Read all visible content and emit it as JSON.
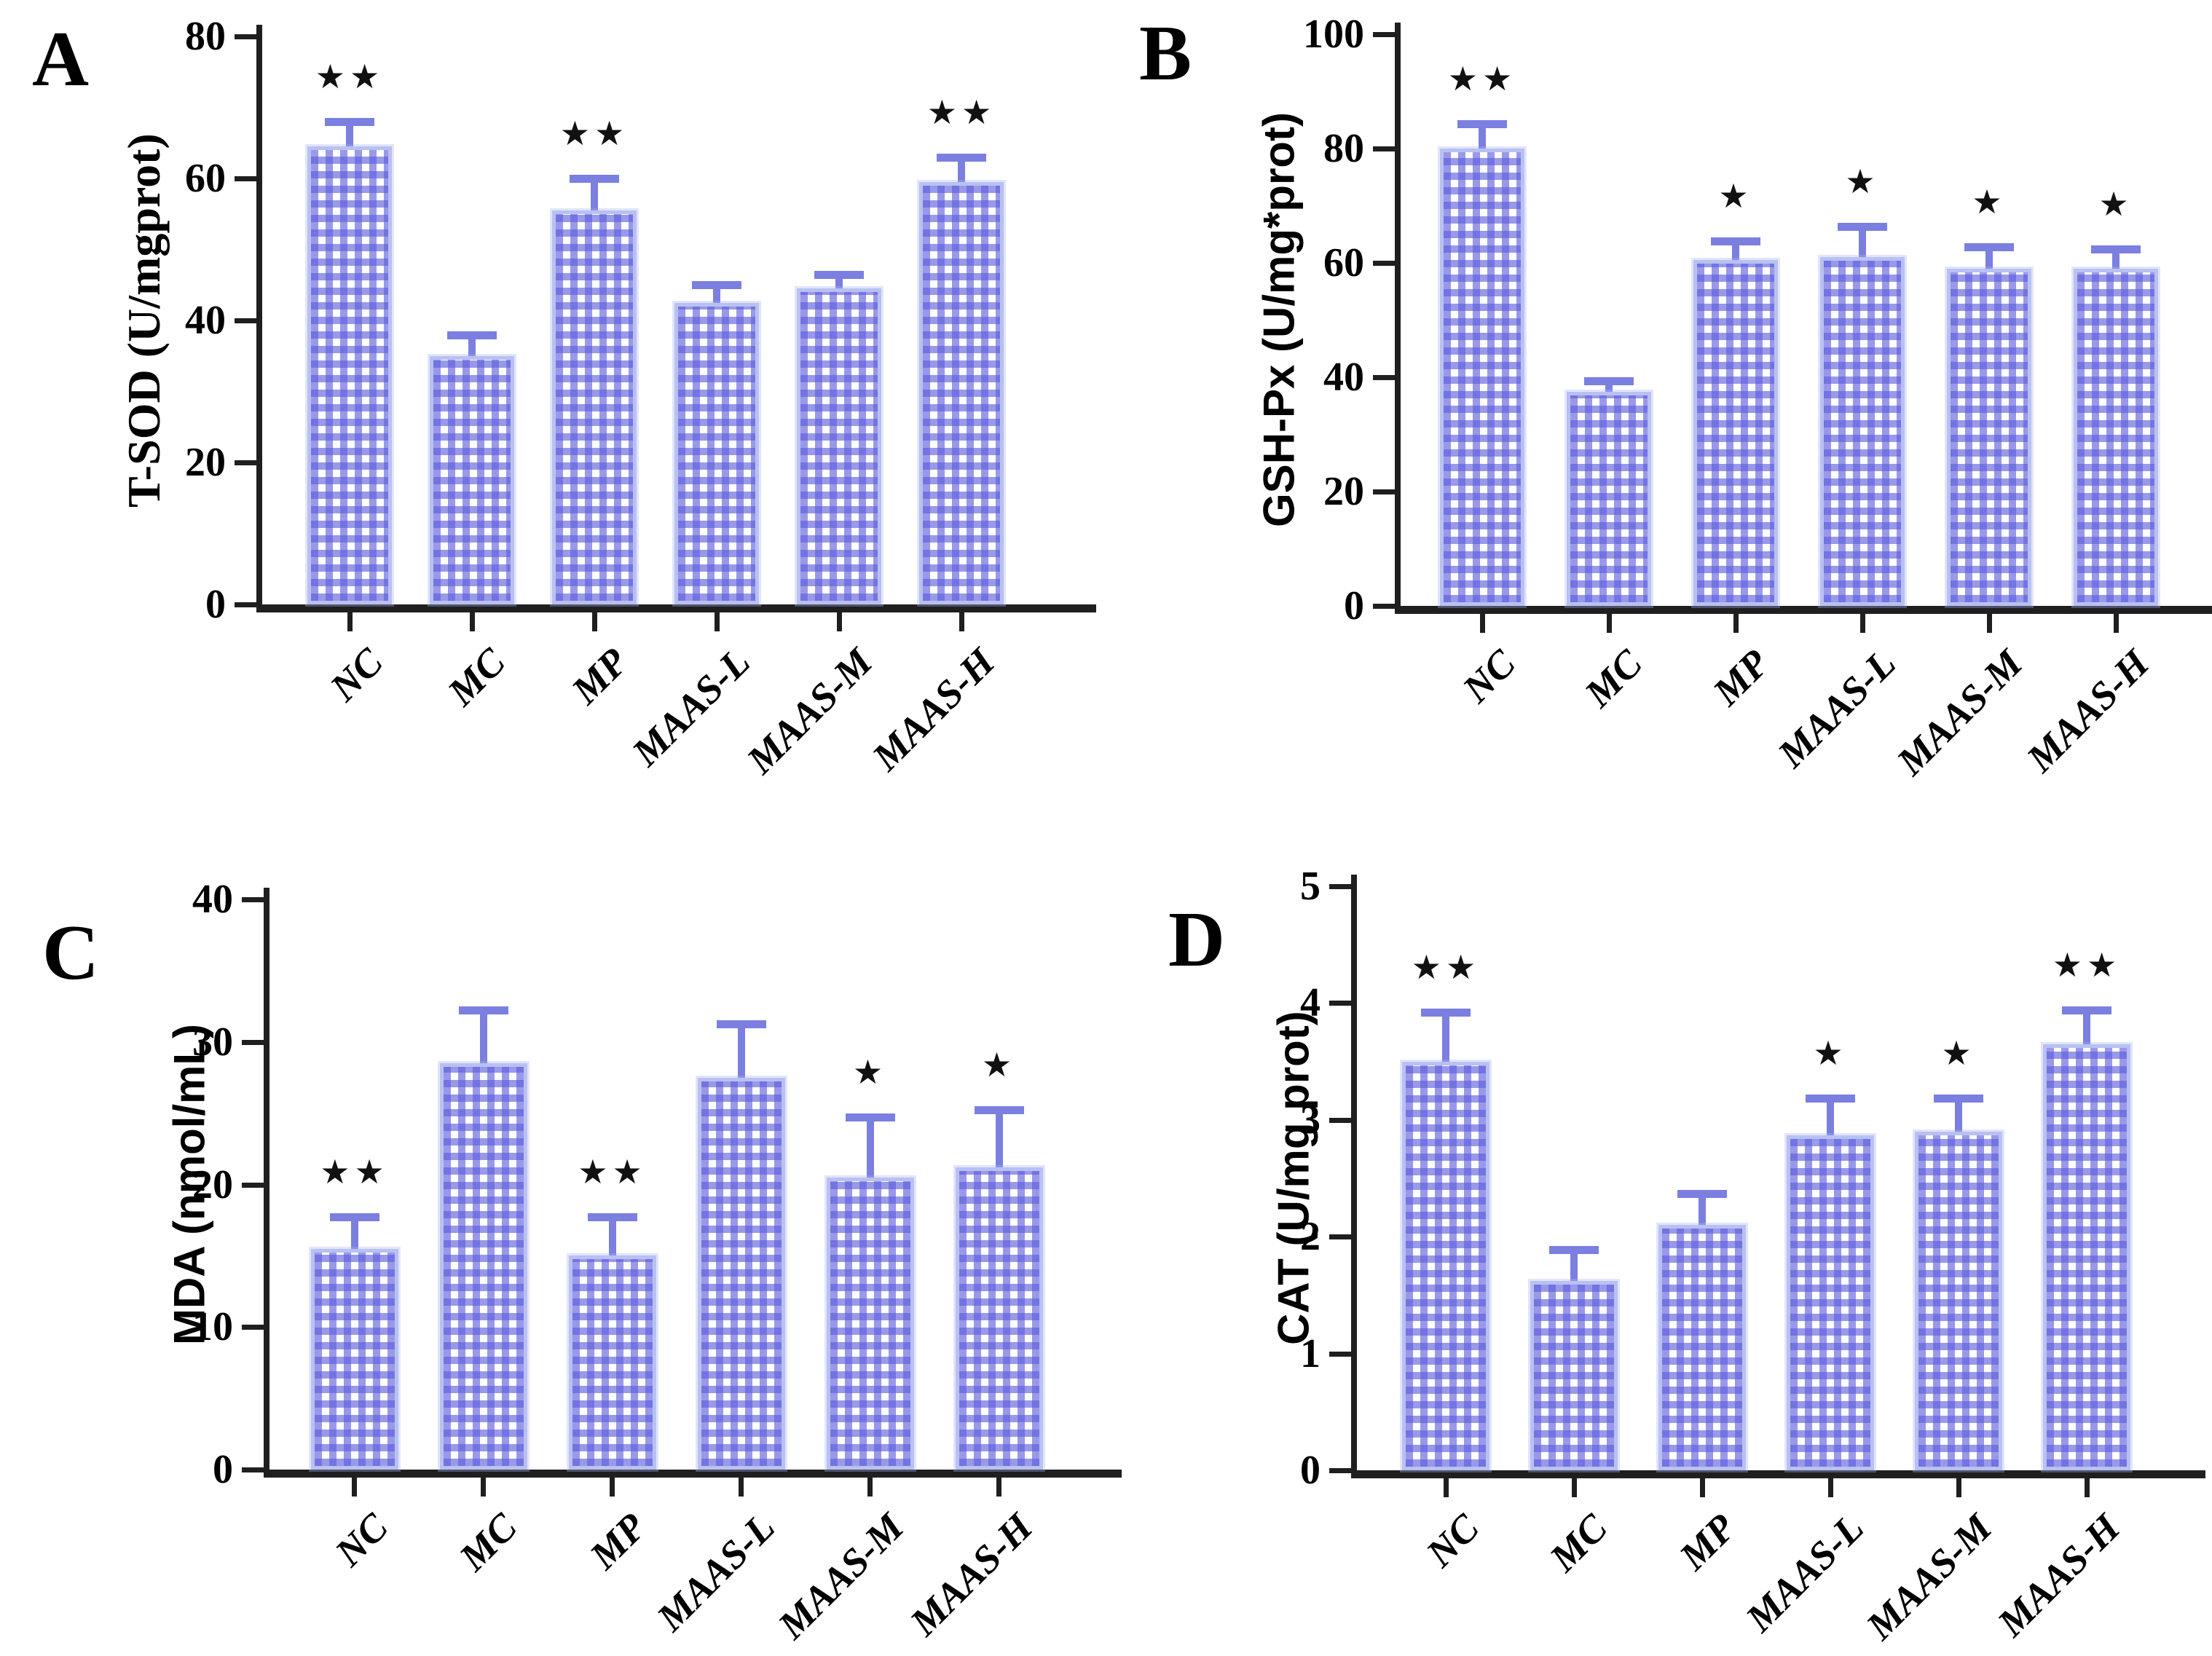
{
  "figure": {
    "colors": {
      "bar_stripe": "rgba(92,92,220,0.62)",
      "bar_border": "#b9c1f2",
      "error_bar": "#7a7fe0",
      "axis": "#1f1f1f",
      "text": "#000000",
      "background": "#ffffff"
    },
    "significance_star_glyph": "★"
  },
  "chart_data": [
    {
      "type": "bar",
      "letter": "A",
      "ylabel": "T-SOD (U/mgprot)",
      "ylabel_font": "serif",
      "xlabel": "",
      "ylim": [
        0,
        80
      ],
      "yticks": [
        0,
        20,
        40,
        60,
        80
      ],
      "grid": false,
      "legend_position": "none",
      "categories": [
        "NC",
        "MC",
        "MP",
        "MAAS-L",
        "MAAS-M",
        "MAAS-H"
      ],
      "values": [
        64.5,
        35,
        55.5,
        42.5,
        44.5,
        59.5
      ],
      "error_tops": [
        68.5,
        38.5,
        60.5,
        45.5,
        47,
        63.5
      ],
      "significance": [
        "**",
        "",
        "**",
        "",
        "",
        "**"
      ]
    },
    {
      "type": "bar",
      "letter": "B",
      "ylabel": "GSH-Px (U/mg*prot)",
      "ylabel_font": "sans",
      "xlabel": "",
      "ylim": [
        0,
        100
      ],
      "yticks": [
        0,
        20,
        40,
        60,
        80,
        100
      ],
      "grid": false,
      "legend_position": "none",
      "categories": [
        "NC",
        "MC",
        "MP",
        "MAAS-L",
        "MAAS-M",
        "MAAS-H"
      ],
      "values": [
        80,
        37.5,
        60.5,
        61,
        59,
        59
      ],
      "error_tops": [
        85,
        40,
        64.5,
        67,
        63.5,
        63
      ],
      "significance": [
        "**",
        "",
        "*",
        "*",
        "*",
        "*"
      ]
    },
    {
      "type": "bar",
      "letter": "C",
      "ylabel": "MDA (nmol/mL)",
      "ylabel_font": "sans",
      "xlabel": "",
      "ylim": [
        0,
        40
      ],
      "yticks": [
        0,
        10,
        20,
        30,
        40
      ],
      "grid": false,
      "legend_position": "none",
      "categories": [
        "NC",
        "MC",
        "MP",
        "MAAS-L",
        "MAAS-M",
        "MAAS-H"
      ],
      "values": [
        15.5,
        28.5,
        15,
        27.5,
        20.5,
        21.2
      ],
      "error_tops": [
        18,
        32.5,
        18,
        31.5,
        25,
        25.5
      ],
      "significance": [
        "**",
        "",
        "**",
        "",
        "*",
        "*"
      ]
    },
    {
      "type": "bar",
      "letter": "D",
      "ylabel": "CAT (U/mg prot)",
      "ylabel_font": "sans",
      "xlabel": "",
      "ylim": [
        0,
        5
      ],
      "yticks": [
        0,
        1,
        2,
        3,
        4,
        5
      ],
      "grid": false,
      "legend_position": "none",
      "categories": [
        "NC",
        "MC",
        "MP",
        "MAAS-L",
        "MAAS-M",
        "MAAS-H"
      ],
      "values": [
        3.5,
        1.62,
        2.1,
        2.87,
        2.9,
        3.65
      ],
      "error_tops": [
        3.95,
        1.92,
        2.4,
        3.22,
        3.22,
        3.97
      ],
      "significance": [
        "**",
        "",
        "",
        "*",
        "*",
        "**"
      ]
    }
  ]
}
